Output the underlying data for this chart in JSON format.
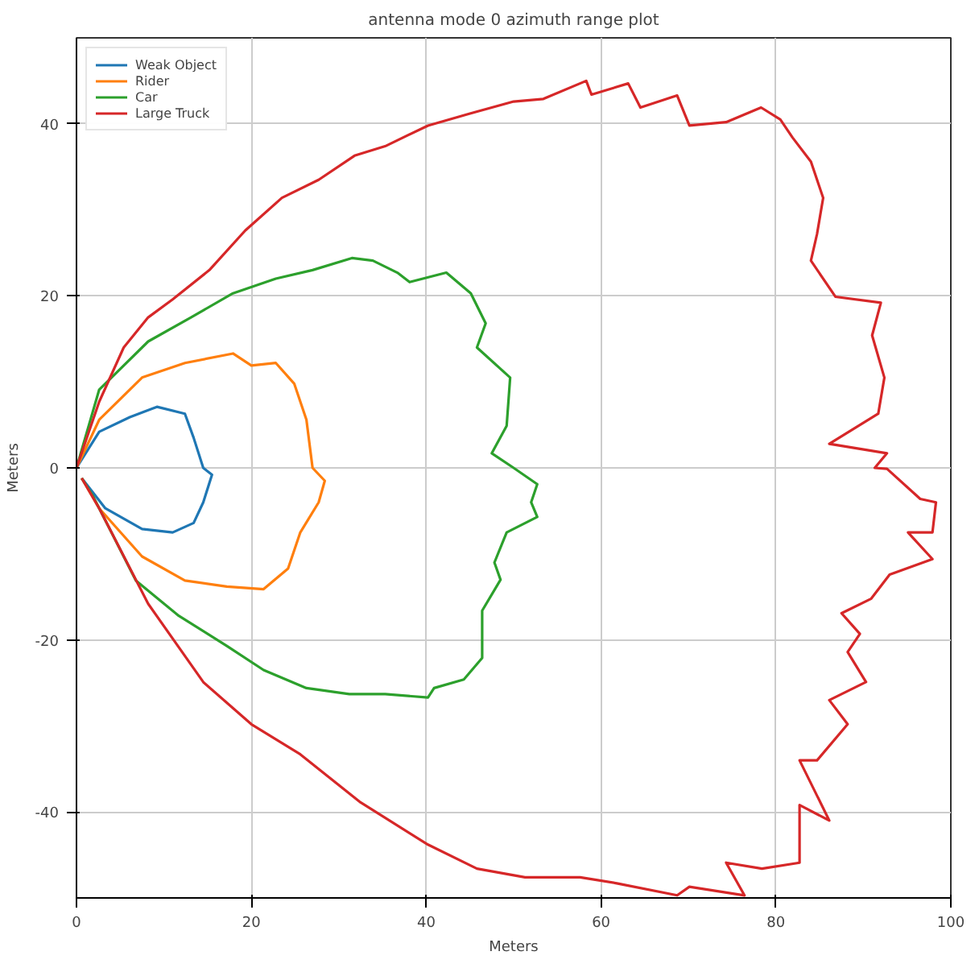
{
  "chart_data": {
    "type": "line",
    "title": "antenna mode 0 azimuth range plot",
    "xlabel": "Meters",
    "ylabel": "Meters",
    "xlim": [
      0,
      100
    ],
    "ylim": [
      -50,
      50
    ],
    "xticks": [
      0,
      20,
      40,
      60,
      80,
      100
    ],
    "yticks": [
      -40,
      -20,
      0,
      20,
      40
    ],
    "grid": true,
    "legend": "top left",
    "line_style": "solid",
    "marker": "none",
    "series": [
      {
        "name": "Weak Object",
        "color": "#1f77b4",
        "x": [
          0,
          2.6,
          6.1,
          9.2,
          12.4,
          13.4,
          14.5,
          15.5,
          14.5,
          13.4,
          11,
          7.5,
          3.3,
          0.6
        ],
        "values": [
          0,
          4.2,
          5.9,
          7.1,
          6.3,
          3.5,
          0,
          -0.8,
          -4,
          -6.4,
          -7.5,
          -7.1,
          -4.7,
          -1.2
        ]
      },
      {
        "name": "Rider",
        "color": "#ff7f0e",
        "x": [
          0,
          2.6,
          7.5,
          12.4,
          17.9,
          20,
          22.8,
          24.9,
          26.3,
          27,
          28.4,
          27.7,
          25.6,
          24.2,
          21.4,
          17.2,
          12.4,
          7.5,
          2.6,
          0.6
        ],
        "values": [
          0,
          5.6,
          10.5,
          12.2,
          13.3,
          11.9,
          12.2,
          9.8,
          5.6,
          0,
          -1.5,
          -4,
          -7.5,
          -11.7,
          -14.1,
          -13.8,
          -13.1,
          -10.3,
          -4.7,
          -1.2
        ]
      },
      {
        "name": "Car",
        "color": "#2ca02c",
        "x": [
          0,
          2.6,
          8.2,
          13.1,
          17.9,
          22.8,
          27,
          31.5,
          33.9,
          36.7,
          38.1,
          42.3,
          45.1,
          46.8,
          45.8,
          49.6,
          49.2,
          47.5,
          50,
          52.7,
          52,
          52.7,
          49.2,
          47.8,
          48.5,
          46.4,
          46.4,
          44.3,
          40.9,
          40.2,
          35.3,
          31.2,
          26.3,
          21.4,
          17.2,
          11.7,
          6.8,
          1.9,
          0.6
        ],
        "values": [
          0,
          9.1,
          14.7,
          17.5,
          20.3,
          22,
          23,
          24.4,
          24.1,
          22.7,
          21.6,
          22.7,
          20.3,
          16.8,
          14,
          10.5,
          4.9,
          1.7,
          0,
          -1.9,
          -4,
          -5.7,
          -7.5,
          -11,
          -13,
          -16.6,
          -22.1,
          -24.6,
          -25.6,
          -26.7,
          -26.3,
          -26.3,
          -25.6,
          -23.5,
          -20.7,
          -17.2,
          -13.1,
          -3.3,
          -1.2
        ]
      },
      {
        "name": "Large Truck",
        "color": "#d62728",
        "x": [
          0,
          2.6,
          5.4,
          8.2,
          11,
          15.2,
          19.3,
          23.5,
          27.7,
          31.8,
          35.3,
          40.2,
          45,
          50,
          53.4,
          58.3,
          58.9,
          63.1,
          64.5,
          68.7,
          70.1,
          74.3,
          78.3,
          80.5,
          81.9,
          84,
          85.4,
          84.7,
          84,
          86.8,
          92,
          91,
          92.4,
          91.7,
          86.1,
          92.7,
          91.3,
          92.7,
          96.5,
          98.3,
          97.9,
          95.1,
          97.9,
          93,
          90.9,
          87.5,
          89.6,
          88.2,
          90.3,
          86.1,
          88.2,
          84.7,
          82.7,
          86.1,
          82.7,
          82.7,
          78.4,
          74.3,
          76.4,
          70.1,
          68.7,
          61.8,
          57.6,
          51.3,
          45.8,
          40.2,
          32.5,
          25.6,
          20,
          14.5,
          8.2,
          2.6,
          0.6
        ],
        "values": [
          0,
          7.7,
          14,
          17.5,
          19.6,
          23,
          27.6,
          31.4,
          33.5,
          36.3,
          37.4,
          39.8,
          41.2,
          42.6,
          42.9,
          45,
          43.4,
          44.7,
          41.9,
          43.3,
          39.8,
          40.2,
          41.9,
          40.5,
          38.4,
          35.6,
          31.4,
          27.2,
          24.1,
          19.9,
          19.2,
          15.4,
          10.5,
          6.3,
          2.8,
          1.7,
          0,
          -0.1,
          -3.6,
          -4,
          -7.5,
          -7.5,
          -10.6,
          -12.4,
          -15.2,
          -16.9,
          -19.3,
          -21.4,
          -24.9,
          -27,
          -29.8,
          -34,
          -34,
          -41,
          -39.2,
          -45.9,
          -46.6,
          -45.9,
          -49.7,
          -48.7,
          -49.7,
          -48.3,
          -47.6,
          -47.6,
          -46.6,
          -43.8,
          -38.9,
          -33.3,
          -29.8,
          -24.9,
          -15.8,
          -4.7,
          -1.2
        ]
      }
    ]
  }
}
